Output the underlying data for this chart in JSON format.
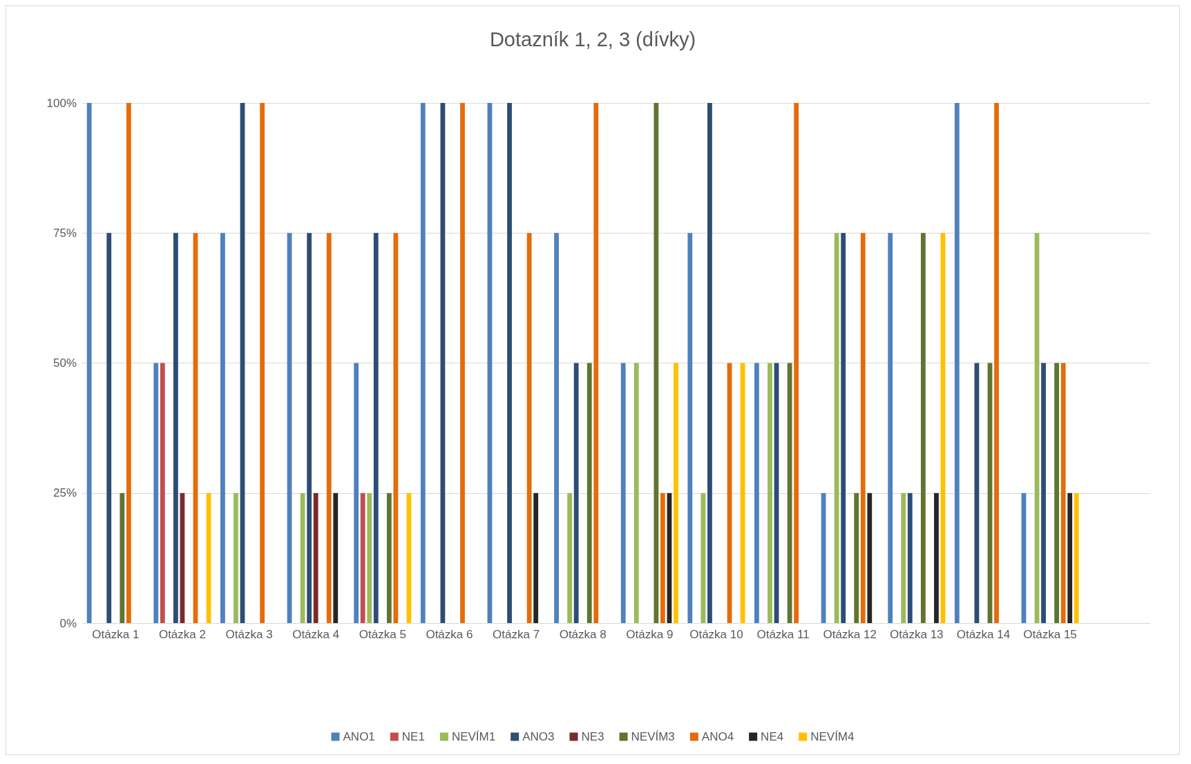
{
  "chart_data": {
    "type": "bar",
    "title": "Dotazník 1, 2, 3 (dívky)",
    "categories": [
      "Otázka 1",
      "Otázka 2",
      "Otázka 3",
      "Otázka 4",
      "Otázka 5",
      "Otázka 6",
      "Otázka 7",
      "Otázka 8",
      "Otázka 9",
      "Otázka 10",
      "Otázka 11",
      "Otázka 12",
      "Otázka 13",
      "Otázka 14",
      "Otázka 15",
      null
    ],
    "series": [
      {
        "name": "ANO1",
        "color": "#4f81bd",
        "values": [
          100,
          50,
          75,
          75,
          50,
          100,
          100,
          75,
          50,
          75,
          50,
          25,
          75,
          100,
          25,
          null
        ]
      },
      {
        "name": "NE1",
        "color": "#c0504d",
        "values": [
          0,
          50,
          0,
          0,
          25,
          0,
          0,
          0,
          0,
          0,
          0,
          0,
          0,
          0,
          0,
          null
        ]
      },
      {
        "name": "NEVÍM1",
        "color": "#9bbb59",
        "values": [
          0,
          0,
          25,
          25,
          25,
          0,
          0,
          25,
          50,
          25,
          50,
          75,
          25,
          0,
          75,
          null
        ]
      },
      {
        "name": "ANO3",
        "color": "#2c4d75",
        "values": [
          75,
          75,
          100,
          75,
          75,
          100,
          100,
          50,
          0,
          100,
          50,
          75,
          25,
          50,
          50,
          null
        ]
      },
      {
        "name": "NE3",
        "color": "#772c2a",
        "values": [
          0,
          25,
          0,
          25,
          0,
          0,
          0,
          0,
          0,
          0,
          0,
          0,
          0,
          0,
          0,
          null
        ]
      },
      {
        "name": "NEVÍM3",
        "color": "#5f7530",
        "values": [
          25,
          0,
          0,
          0,
          25,
          0,
          0,
          50,
          100,
          0,
          50,
          25,
          75,
          50,
          50,
          null
        ]
      },
      {
        "name": "ANO4",
        "color": "#e46c0a",
        "values": [
          100,
          75,
          100,
          75,
          75,
          100,
          75,
          100,
          25,
          50,
          100,
          75,
          0,
          100,
          50,
          null
        ]
      },
      {
        "name": "NE4",
        "color": "#262626",
        "values": [
          0,
          0,
          0,
          25,
          0,
          0,
          25,
          0,
          25,
          0,
          0,
          25,
          25,
          0,
          25,
          null
        ]
      },
      {
        "name": "NEVÍM4",
        "color": "#ffc000",
        "values": [
          0,
          25,
          0,
          0,
          25,
          0,
          0,
          0,
          50,
          50,
          0,
          0,
          75,
          0,
          25,
          null
        ]
      }
    ],
    "ylim": [
      0,
      100
    ],
    "yticks": [
      {
        "value": 0,
        "label": "0%"
      },
      {
        "value": 25,
        "label": "25%"
      },
      {
        "value": 50,
        "label": "50%"
      },
      {
        "value": 75,
        "label": "75%"
      },
      {
        "value": 100,
        "label": "100%"
      }
    ],
    "grid": "y",
    "legend": "bottom"
  }
}
